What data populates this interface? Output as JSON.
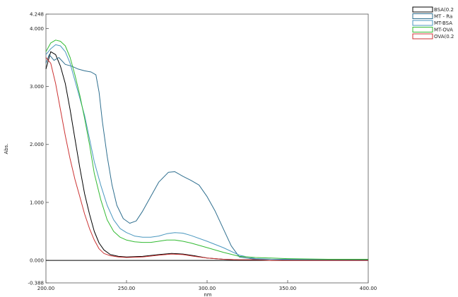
{
  "chart_data": {
    "type": "line",
    "title": "",
    "xlabel": "nm",
    "ylabel": "Abs.",
    "xlim": [
      200,
      400
    ],
    "ylim": [
      -0.388,
      4.248
    ],
    "grid": false,
    "legend_position": "top-right",
    "x_ticks": [
      "200.00",
      "250.00",
      "300.00",
      "350.00",
      "400.00"
    ],
    "y_ticks": [
      {
        "value": 4.248,
        "label": "4.248"
      },
      {
        "value": 4.0,
        "label": "4.000"
      },
      {
        "value": 3.0,
        "label": "3.000"
      },
      {
        "value": 2.0,
        "label": "2.000"
      },
      {
        "value": 1.0,
        "label": "1.000"
      },
      {
        "value": 0.0,
        "label": "0.000"
      },
      {
        "value": -0.388,
        "label": "-0.388"
      }
    ],
    "legend": [
      "BSA(0.2",
      "MT - Ra",
      "MT-BSA",
      "MT-OVA",
      "OVA(0.2"
    ],
    "series": [
      {
        "name": "BSA(0.2",
        "color": "#000000",
        "x": [
          200,
          203,
          206,
          209,
          212,
          215,
          218,
          221,
          224,
          227,
          230,
          233,
          236,
          240,
          245,
          250,
          260,
          270,
          278,
          285,
          292,
          300,
          310,
          320,
          330,
          340,
          350,
          375,
          400
        ],
        "y": [
          3.3,
          3.6,
          3.55,
          3.35,
          3.05,
          2.6,
          2.1,
          1.6,
          1.15,
          0.8,
          0.5,
          0.3,
          0.18,
          0.1,
          0.07,
          0.06,
          0.07,
          0.1,
          0.12,
          0.11,
          0.08,
          0.04,
          0.02,
          0.01,
          0.01,
          0.0,
          0.0,
          0.0,
          0.0
        ]
      },
      {
        "name": "MT - Ra",
        "color": "#2f6f8f",
        "x": [
          200,
          202,
          205,
          208,
          212,
          216,
          220,
          224,
          228,
          231,
          233,
          235,
          238,
          241,
          244,
          248,
          252,
          256,
          260,
          265,
          270,
          276,
          280,
          285,
          290,
          295,
          300,
          305,
          310,
          315,
          320,
          330,
          340,
          350,
          375,
          400
        ],
        "y": [
          3.4,
          3.55,
          3.45,
          3.5,
          3.38,
          3.35,
          3.3,
          3.27,
          3.25,
          3.2,
          2.9,
          2.4,
          1.8,
          1.3,
          0.95,
          0.72,
          0.64,
          0.68,
          0.85,
          1.1,
          1.35,
          1.52,
          1.53,
          1.45,
          1.38,
          1.3,
          1.1,
          0.85,
          0.55,
          0.25,
          0.06,
          0.02,
          0.02,
          0.01,
          0.01,
          0.01
        ]
      },
      {
        "name": "MT-BSA",
        "color": "#4a97bf",
        "x": [
          200,
          203,
          206,
          209,
          212,
          215,
          218,
          221,
          224,
          227,
          230,
          234,
          238,
          242,
          246,
          250,
          255,
          260,
          265,
          270,
          275,
          280,
          285,
          290,
          300,
          310,
          320,
          330,
          340,
          350,
          375,
          400
        ],
        "y": [
          3.55,
          3.65,
          3.72,
          3.7,
          3.6,
          3.4,
          3.1,
          2.8,
          2.5,
          2.1,
          1.7,
          1.3,
          0.95,
          0.7,
          0.55,
          0.48,
          0.42,
          0.4,
          0.4,
          0.42,
          0.46,
          0.48,
          0.47,
          0.43,
          0.33,
          0.22,
          0.09,
          0.03,
          0.02,
          0.02,
          0.02,
          0.02
        ]
      },
      {
        "name": "MT-OVA",
        "color": "#33bb33",
        "x": [
          200,
          203,
          206,
          209,
          212,
          215,
          218,
          221,
          224,
          227,
          230,
          234,
          238,
          242,
          246,
          250,
          255,
          260,
          265,
          270,
          275,
          280,
          285,
          290,
          300,
          310,
          320,
          330,
          340,
          350,
          375,
          400
        ],
        "y": [
          3.6,
          3.75,
          3.8,
          3.78,
          3.7,
          3.5,
          3.2,
          2.85,
          2.45,
          2.0,
          1.5,
          1.05,
          0.7,
          0.5,
          0.4,
          0.35,
          0.32,
          0.31,
          0.31,
          0.33,
          0.35,
          0.35,
          0.33,
          0.3,
          0.22,
          0.14,
          0.07,
          0.05,
          0.04,
          0.03,
          0.02,
          0.02
        ]
      },
      {
        "name": "OVA(0.2",
        "color": "#cc3333",
        "x": [
          200,
          203,
          206,
          209,
          212,
          215,
          218,
          221,
          224,
          227,
          230,
          233,
          236,
          240,
          245,
          250,
          260,
          270,
          278,
          285,
          292,
          300,
          310,
          320,
          330,
          340,
          350,
          375,
          400
        ],
        "y": [
          3.5,
          3.4,
          3.05,
          2.6,
          2.15,
          1.75,
          1.4,
          1.1,
          0.8,
          0.55,
          0.35,
          0.2,
          0.12,
          0.08,
          0.06,
          0.05,
          0.06,
          0.09,
          0.11,
          0.1,
          0.07,
          0.04,
          0.02,
          0.01,
          0.01,
          0.0,
          0.0,
          0.0,
          0.0
        ]
      }
    ]
  }
}
